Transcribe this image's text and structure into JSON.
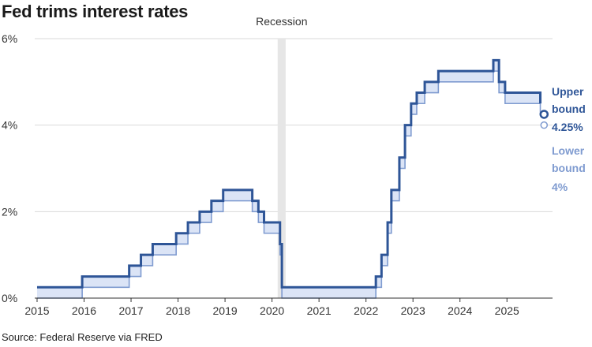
{
  "title": "Fed trims interest rates",
  "source": "Source: Federal Reserve via FRED",
  "colors": {
    "upper": "#2e5597",
    "lower": "#7f9bd0",
    "fill": "#dbe4f6",
    "recession": "#e6e6e6",
    "grid": "#d9d9d9",
    "axis": "#333333"
  },
  "chart_data": {
    "type": "line",
    "title": "Fed trims interest rates",
    "xlabel": "",
    "ylabel": "",
    "xlim": [
      2014.95,
      2025.97
    ],
    "ylim": [
      0,
      6
    ],
    "grid": true,
    "x_ticks": [
      2015,
      2016,
      2017,
      2018,
      2019,
      2020,
      2021,
      2022,
      2023,
      2024,
      2025
    ],
    "x_tick_labels": [
      "2015",
      "2016",
      "2017",
      "2018",
      "2019",
      "2020",
      "2021",
      "2022",
      "2023",
      "2024",
      "2025"
    ],
    "y_ticks": [
      0,
      2,
      4,
      6
    ],
    "y_tick_labels": [
      "0%",
      "2%",
      "4%",
      "6%"
    ],
    "recession": {
      "label": "Recession",
      "start": 2020.12,
      "end": 2020.29
    },
    "steps": {
      "x": [
        2015.0,
        2015.96,
        2016.96,
        2017.21,
        2017.46,
        2017.96,
        2018.21,
        2018.46,
        2018.71,
        2018.96,
        2019.58,
        2019.71,
        2019.83,
        2020.17,
        2020.21,
        2022.21,
        2022.33,
        2022.46,
        2022.54,
        2022.71,
        2022.83,
        2022.96,
        2023.08,
        2023.25,
        2023.54,
        2024.71,
        2024.83,
        2024.96,
        2025.71
      ],
      "upper": [
        0.25,
        0.5,
        0.75,
        1.0,
        1.25,
        1.5,
        1.75,
        2.0,
        2.25,
        2.5,
        2.25,
        2.0,
        1.75,
        1.25,
        0.25,
        0.5,
        1.0,
        1.75,
        2.5,
        3.25,
        4.0,
        4.5,
        4.75,
        5.0,
        5.25,
        5.5,
        5.0,
        4.75,
        4.5
      ],
      "end_x": 2025.71
    },
    "series": [
      {
        "name": "Upper bound",
        "values": [
          0.25,
          0.5,
          0.75,
          1.0,
          1.25,
          1.5,
          1.75,
          2.0,
          2.25,
          2.5,
          2.25,
          2.0,
          1.75,
          1.25,
          0.25,
          0.5,
          1.0,
          1.75,
          2.5,
          3.25,
          4.0,
          4.5,
          4.75,
          5.0,
          5.25,
          5.5,
          5.0,
          4.75,
          4.5
        ]
      },
      {
        "name": "Lower bound",
        "values": [
          0,
          0.25,
          0.5,
          0.75,
          1.0,
          1.25,
          1.5,
          1.75,
          2.0,
          2.25,
          2.0,
          1.75,
          1.5,
          1.0,
          0,
          0.25,
          0.75,
          1.5,
          2.25,
          3.0,
          3.75,
          4.25,
          4.5,
          4.75,
          5.0,
          5.25,
          4.75,
          4.5,
          4.25
        ]
      }
    ],
    "end_points": {
      "x": 2025.79,
      "upper": 4.25,
      "lower": 4.0
    },
    "end_labels": {
      "upper": [
        "Upper",
        "bound",
        "4.25%"
      ],
      "lower": [
        "Lower",
        "bound",
        "4%"
      ]
    }
  }
}
